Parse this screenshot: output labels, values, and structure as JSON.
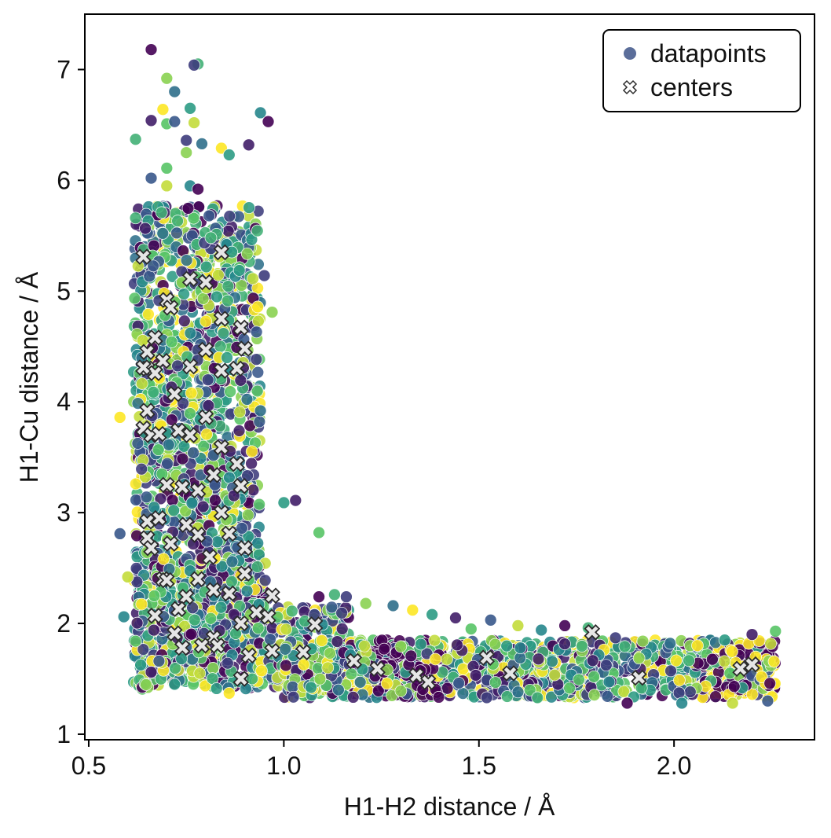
{
  "chart_data": {
    "type": "scatter",
    "title": "",
    "xlabel": "H1-H2 distance / Å",
    "ylabel": "H1-Cu distance / Å",
    "xlim": [
      0.49,
      2.36
    ],
    "ylim": [
      0.95,
      7.5
    ],
    "x_ticks": [
      0.5,
      1.0,
      1.5,
      2.0
    ],
    "x_tick_labels": [
      "0.5",
      "1.0",
      "1.5",
      "2.0"
    ],
    "y_ticks": [
      1,
      2,
      3,
      4,
      5,
      6,
      7
    ],
    "y_tick_labels": [
      "1",
      "2",
      "3",
      "4",
      "5",
      "6",
      "7"
    ],
    "grid": false,
    "legend": {
      "placement": "top-right",
      "entries": [
        "datapoints",
        "centers"
      ]
    },
    "colormap": "viridis",
    "colors": {
      "legend_datapoints": "#5b6e9a",
      "center_fill": "#e6e6e6",
      "center_edge": "#2b2b2b",
      "viridis_stops": [
        "#440154",
        "#3b528b",
        "#21918c",
        "#5ec962",
        "#fde725"
      ]
    },
    "series": [
      {
        "name": "datapoints",
        "marker": "circle",
        "note_color": "viridis by cluster",
        "points": [
          [
            0.66,
            7.18
          ],
          [
            0.78,
            7.05
          ],
          [
            0.77,
            7.04
          ],
          [
            0.7,
            6.92
          ],
          [
            0.72,
            6.8
          ],
          [
            0.69,
            6.64
          ],
          [
            0.76,
            6.65
          ],
          [
            0.66,
            6.54
          ],
          [
            0.7,
            6.51
          ],
          [
            0.72,
            6.53
          ],
          [
            0.77,
            6.52
          ],
          [
            0.94,
            6.61
          ],
          [
            0.96,
            6.53
          ],
          [
            0.62,
            6.37
          ],
          [
            0.75,
            6.36
          ],
          [
            0.75,
            6.25
          ],
          [
            0.79,
            6.33
          ],
          [
            0.84,
            6.29
          ],
          [
            0.86,
            6.23
          ],
          [
            0.91,
            6.32
          ],
          [
            0.7,
            6.11
          ],
          [
            0.66,
            6.02
          ],
          [
            0.7,
            5.95
          ],
          [
            0.76,
            5.95
          ],
          [
            0.78,
            5.92
          ],
          [
            0.62,
            5.66
          ],
          [
            0.95,
            5.14
          ],
          [
            0.97,
            4.81
          ],
          [
            0.94,
            3.92
          ],
          [
            0.58,
            3.86
          ],
          [
            1.0,
            3.09
          ],
          [
            1.03,
            3.11
          ],
          [
            1.09,
            2.82
          ],
          [
            0.58,
            2.81
          ],
          [
            0.6,
            2.42
          ],
          [
            0.59,
            2.06
          ],
          [
            1.09,
            2.24
          ],
          [
            1.13,
            2.26
          ],
          [
            1.16,
            2.24
          ],
          [
            1.21,
            2.18
          ],
          [
            1.28,
            2.16
          ],
          [
            1.33,
            2.12
          ],
          [
            1.38,
            2.08
          ],
          [
            1.44,
            2.05
          ],
          [
            1.48,
            1.95
          ],
          [
            1.53,
            2.03
          ],
          [
            1.6,
            1.98
          ],
          [
            1.66,
            1.94
          ],
          [
            1.72,
            1.98
          ],
          [
            1.78,
            1.96
          ],
          [
            1.85,
            1.87
          ],
          [
            1.92,
            1.84
          ],
          [
            1.99,
            1.82
          ],
          [
            2.06,
            1.8
          ],
          [
            2.13,
            1.85
          ],
          [
            2.2,
            1.9
          ],
          [
            2.26,
            1.93
          ],
          [
            2.24,
            1.3
          ],
          [
            2.15,
            1.28
          ],
          [
            2.02,
            1.28
          ],
          [
            1.88,
            1.28
          ],
          [
            1.65,
            1.33
          ],
          [
            1.52,
            1.33
          ],
          [
            1.3,
            1.39
          ],
          [
            1.14,
            1.4
          ],
          [
            0.86,
            1.37
          ],
          [
            0.72,
            1.45
          ],
          [
            0.66,
            1.56
          ],
          [
            0.62,
            1.84
          ],
          [
            0.68,
            1.66
          ]
        ]
      },
      {
        "name": "centers",
        "marker": "X",
        "points": [
          [
            0.64,
            5.31
          ],
          [
            0.84,
            5.35
          ],
          [
            0.76,
            5.11
          ],
          [
            0.8,
            5.08
          ],
          [
            0.7,
            4.92
          ],
          [
            0.71,
            4.85
          ],
          [
            0.89,
            4.67
          ],
          [
            0.84,
            4.75
          ],
          [
            0.67,
            4.58
          ],
          [
            0.65,
            4.45
          ],
          [
            0.8,
            4.47
          ],
          [
            0.9,
            4.48
          ],
          [
            0.65,
            4.3
          ],
          [
            0.69,
            4.37
          ],
          [
            0.76,
            4.32
          ],
          [
            0.84,
            4.28
          ],
          [
            0.88,
            4.3
          ],
          [
            0.67,
            4.26
          ],
          [
            0.72,
            4.07
          ],
          [
            0.64,
            4.31
          ],
          [
            0.65,
            3.92
          ],
          [
            0.8,
            3.86
          ],
          [
            0.64,
            3.76
          ],
          [
            0.66,
            3.7
          ],
          [
            0.68,
            3.71
          ],
          [
            0.73,
            3.74
          ],
          [
            0.76,
            3.7
          ],
          [
            0.84,
            3.59
          ],
          [
            0.88,
            3.44
          ],
          [
            0.82,
            3.34
          ],
          [
            0.7,
            3.25
          ],
          [
            0.74,
            3.23
          ],
          [
            0.78,
            3.2
          ],
          [
            0.89,
            3.24
          ],
          [
            0.84,
            3.0
          ],
          [
            0.65,
            2.92
          ],
          [
            0.68,
            2.95
          ],
          [
            0.75,
            2.89
          ],
          [
            0.78,
            2.8
          ],
          [
            0.86,
            2.81
          ],
          [
            0.65,
            2.77
          ],
          [
            0.71,
            2.72
          ],
          [
            0.66,
            2.68
          ],
          [
            0.9,
            2.68
          ],
          [
            0.81,
            2.6
          ],
          [
            0.9,
            2.45
          ],
          [
            0.78,
            2.4
          ],
          [
            0.69,
            2.4
          ],
          [
            0.7,
            2.39
          ],
          [
            0.82,
            2.3
          ],
          [
            0.86,
            2.27
          ],
          [
            0.75,
            2.24
          ],
          [
            0.97,
            2.25
          ],
          [
            0.73,
            2.13
          ],
          [
            0.93,
            2.1
          ],
          [
            0.67,
            2.07
          ],
          [
            0.96,
            2.06
          ],
          [
            0.89,
            2.0
          ],
          [
            1.08,
            1.99
          ],
          [
            0.72,
            1.91
          ],
          [
            0.82,
            1.87
          ],
          [
            0.74,
            1.78
          ],
          [
            0.79,
            1.8
          ],
          [
            0.83,
            1.8
          ],
          [
            0.97,
            1.75
          ],
          [
            1.05,
            1.74
          ],
          [
            0.91,
            1.71
          ],
          [
            1.18,
            1.66
          ],
          [
            1.52,
            1.69
          ],
          [
            1.24,
            1.59
          ],
          [
            0.89,
            1.5
          ],
          [
            1.34,
            1.53
          ],
          [
            1.37,
            1.47
          ],
          [
            1.58,
            1.55
          ],
          [
            1.79,
            1.92
          ],
          [
            1.91,
            1.51
          ],
          [
            2.17,
            1.59
          ],
          [
            2.2,
            1.63
          ]
        ]
      }
    ]
  }
}
